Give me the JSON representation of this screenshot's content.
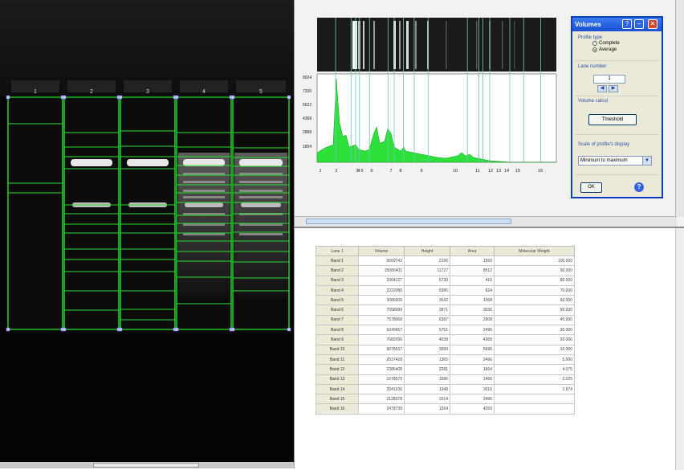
{
  "gel": {
    "lane_labels": [
      "1",
      "2",
      "3",
      "4",
      "5"
    ]
  },
  "profile": {
    "y_ticks": [
      "8024",
      "7200",
      "5622",
      "4368",
      "2888",
      "1804"
    ],
    "x_ticks": [
      "1",
      "2",
      "3",
      "4",
      "5",
      "6",
      "7",
      "8",
      "9",
      "10",
      "11",
      "12",
      "13",
      "14",
      "15",
      "16"
    ]
  },
  "dialog": {
    "title": "Volumes",
    "profile_type_label": "Profile type",
    "option_complete": "Complete",
    "option_average": "Average",
    "selected_profile_type": "Average",
    "lane_number_label": "Lane number",
    "lane_number_value": "1",
    "volume_calcul_label": "Volume calcul",
    "threshold_button": "Threshold",
    "scale_label": "Scale of profile's display",
    "scale_value": "Minimum to maximum",
    "ok_button": "OK",
    "help_icon": "?"
  },
  "table": {
    "headers": [
      "Lane 1",
      "Volume",
      "Height",
      "Area",
      "Molecular Weight"
    ],
    "rows": [
      [
        "Band 1",
        "5659742",
        "2196",
        "1559",
        "100.000"
      ],
      [
        "Band 2",
        "15080401",
        "11727",
        "8512",
        "90.000"
      ],
      [
        "Band 3",
        "2064127",
        "6730",
        "416",
        "80.000"
      ],
      [
        "Band 4",
        "2222080",
        "5386",
        "624",
        "70.000"
      ],
      [
        "Band 5",
        "3080205",
        "3042",
        "1068",
        "60.000"
      ],
      [
        "Band 6",
        "7058099",
        "2871",
        "3036",
        "50.000"
      ],
      [
        "Band 7",
        "7578068",
        "6387",
        "2908",
        "40.000"
      ],
      [
        "Band 8",
        "6249667",
        "5751",
        "2496",
        "30.000"
      ],
      [
        "Band 9",
        "7082096",
        "4038",
        "4368",
        "20.000"
      ],
      [
        "Band 10",
        "9078537",
        "3099",
        "5696",
        "10.000"
      ],
      [
        "Band 11",
        "2037428",
        "1365",
        "2496",
        "5.000"
      ],
      [
        "Band 12",
        "2386408",
        "2281",
        "1664",
        "4.075"
      ],
      [
        "Band 13",
        "1678570",
        "1586",
        "1456",
        "2.025"
      ],
      [
        "Band 14",
        "2041036",
        "1348",
        "3016",
        "1.974"
      ],
      [
        "Band 15",
        "2128378",
        "1014",
        "2496",
        ""
      ],
      [
        "Band 16",
        "2478739",
        "1264",
        "4259",
        ""
      ]
    ]
  },
  "colors": {
    "accent_green": "#23e02a",
    "dialog_title_blue": "#1b4fd6",
    "gel_background": "#000000"
  }
}
